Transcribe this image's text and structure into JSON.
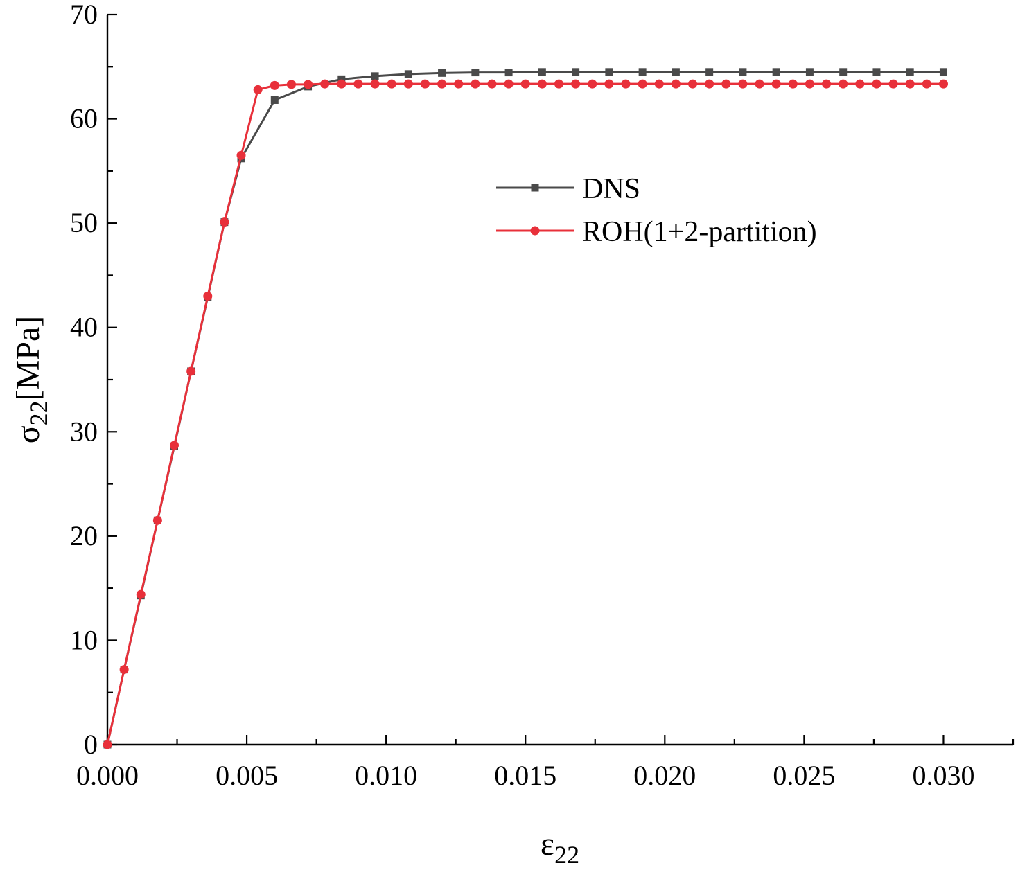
{
  "chart_data": {
    "type": "line",
    "title": "",
    "xlabel": {
      "base": "ε",
      "sub": "22"
    },
    "ylabel": {
      "base": "σ",
      "sub": "22",
      "unit": "[MPa]"
    },
    "xlim": [
      0,
      0.0325
    ],
    "ylim": [
      0,
      70
    ],
    "xticks": [
      0.0,
      0.005,
      0.01,
      0.015,
      0.02,
      0.025,
      0.03
    ],
    "xtick_labels": [
      "0.000",
      "0.005",
      "0.010",
      "0.015",
      "0.020",
      "0.025",
      "0.030"
    ],
    "yticks": [
      0,
      10,
      20,
      30,
      40,
      50,
      60,
      70
    ],
    "ytick_labels": [
      "0",
      "10",
      "20",
      "30",
      "40",
      "50",
      "60",
      "70"
    ],
    "legend_position": "upper-right-center",
    "series": [
      {
        "name": "DNS",
        "color": "#4a4a4a",
        "marker": "square",
        "x": [
          0.0,
          0.0006,
          0.0012,
          0.0018,
          0.0024,
          0.003,
          0.0036,
          0.0042,
          0.0048,
          0.006,
          0.0072,
          0.0084,
          0.0096,
          0.0108,
          0.012,
          0.0132,
          0.0144,
          0.0156,
          0.0168,
          0.018,
          0.0192,
          0.0204,
          0.0216,
          0.0228,
          0.024,
          0.0252,
          0.0264,
          0.0276,
          0.0288,
          0.03
        ],
        "y": [
          0.0,
          7.2,
          14.3,
          21.5,
          28.6,
          35.8,
          42.9,
          50.1,
          56.2,
          61.8,
          63.1,
          63.8,
          64.1,
          64.3,
          64.4,
          64.45,
          64.45,
          64.5,
          64.5,
          64.5,
          64.5,
          64.5,
          64.5,
          64.5,
          64.5,
          64.5,
          64.5,
          64.5,
          64.5,
          64.5
        ]
      },
      {
        "name": "ROH(1+2-partition)",
        "color": "#e8303a",
        "marker": "circle",
        "x": [
          0.0,
          0.0006,
          0.0012,
          0.0018,
          0.0024,
          0.003,
          0.0036,
          0.0042,
          0.0048,
          0.0054,
          0.006,
          0.0066,
          0.0072,
          0.0078,
          0.0084,
          0.009,
          0.0096,
          0.0102,
          0.0108,
          0.0114,
          0.012,
          0.0126,
          0.0132,
          0.0138,
          0.0144,
          0.015,
          0.0156,
          0.0162,
          0.0168,
          0.0174,
          0.018,
          0.0186,
          0.0192,
          0.0198,
          0.0204,
          0.021,
          0.0216,
          0.0222,
          0.0228,
          0.0234,
          0.024,
          0.0246,
          0.0252,
          0.0258,
          0.0264,
          0.027,
          0.0276,
          0.0282,
          0.0288,
          0.0294,
          0.03
        ],
        "y": [
          0.0,
          7.2,
          14.4,
          21.5,
          28.7,
          35.8,
          43.0,
          50.1,
          56.5,
          62.8,
          63.2,
          63.3,
          63.3,
          63.35,
          63.35,
          63.35,
          63.35,
          63.35,
          63.35,
          63.35,
          63.35,
          63.35,
          63.35,
          63.35,
          63.35,
          63.35,
          63.35,
          63.35,
          63.35,
          63.35,
          63.35,
          63.35,
          63.35,
          63.35,
          63.35,
          63.35,
          63.35,
          63.35,
          63.35,
          63.35,
          63.35,
          63.35,
          63.35,
          63.35,
          63.35,
          63.35,
          63.35,
          63.35,
          63.35,
          63.35,
          63.35
        ]
      }
    ]
  }
}
